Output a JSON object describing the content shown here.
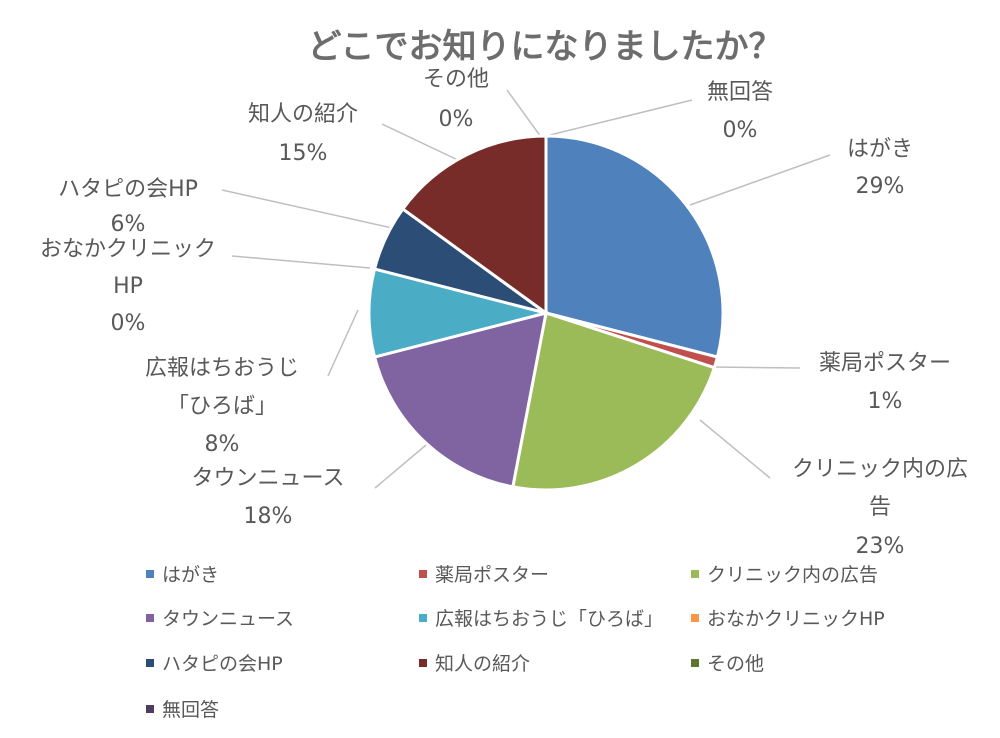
{
  "chart_data": {
    "type": "pie",
    "title": "どこでお知りになりましたか？",
    "categories": [
      "はがき",
      "薬局ポスター",
      "クリニック内の広告",
      "タウンニュース",
      "広報はちおうじ「ひろば」",
      "おなかクリニックHP",
      "ハタピの会HP",
      "知人の紹介",
      "その他",
      "無回答"
    ],
    "values": [
      29,
      1,
      23,
      18,
      8,
      0,
      6,
      15,
      0,
      0
    ],
    "value_labels": [
      "29%",
      "1%",
      "23%",
      "18%",
      "8%",
      "0%",
      "6%",
      "15%",
      "0%",
      "0%"
    ],
    "colors": [
      "#4F81BD",
      "#C0504D",
      "#9BBB59",
      "#8064A2",
      "#4BACC6",
      "#F79646",
      "#2C4D75",
      "#772C2A",
      "#5F7530",
      "#4D3B62"
    ],
    "legend_position": "bottom",
    "start_angle": "top, clockwise"
  }
}
